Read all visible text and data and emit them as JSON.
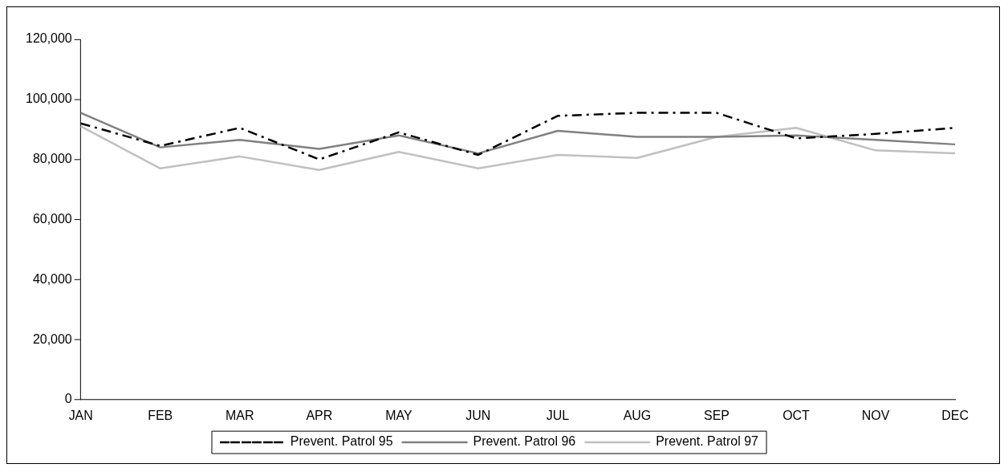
{
  "chart_data": {
    "type": "line",
    "categories": [
      "JAN",
      "FEB",
      "MAR",
      "APR",
      "MAY",
      "JUN",
      "JUL",
      "AUG",
      "SEP",
      "OCT",
      "NOV",
      "DEC"
    ],
    "series": [
      {
        "name": "Prevent. Patrol 95",
        "color": "#000000",
        "line_style": "dashdot",
        "values": [
          92000,
          84500,
          90500,
          80000,
          89000,
          81500,
          94500,
          95500,
          95500,
          87000,
          88500,
          90500
        ]
      },
      {
        "name": "Prevent. Patrol 96",
        "color": "#808080",
        "line_style": "solid",
        "values": [
          95500,
          84000,
          86500,
          83500,
          88000,
          82000,
          89500,
          87500,
          87500,
          88000,
          86500,
          85000
        ]
      },
      {
        "name": "Prevent. Patrol 97",
        "color": "#c0c0c0",
        "line_style": "solid",
        "values": [
          91000,
          77000,
          81000,
          76500,
          82500,
          77000,
          81500,
          80500,
          87500,
          90500,
          83000,
          82000
        ]
      }
    ],
    "ylim": [
      0,
      120000
    ],
    "yticks": [
      {
        "value": 0,
        "label": "0"
      },
      {
        "value": 20000,
        "label": "20,000"
      },
      {
        "value": 40000,
        "label": "40,000"
      },
      {
        "value": 60000,
        "label": "60,000"
      },
      {
        "value": 80000,
        "label": "80,000"
      },
      {
        "value": 100000,
        "label": "100,000"
      },
      {
        "value": 120000,
        "label": "120,000"
      }
    ],
    "grid": false,
    "legend": "bottom",
    "marker": "none"
  }
}
